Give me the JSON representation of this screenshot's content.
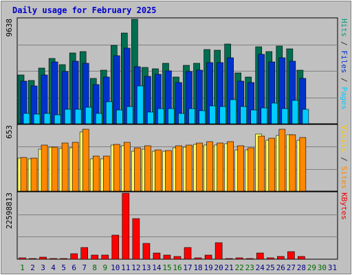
{
  "title": "Daily usage for February 2025",
  "chart_data": [
    {
      "type": "bar",
      "panel": "pages-files-hits",
      "y_max_label": "9638",
      "ylim": [
        0,
        9638
      ],
      "right_label_parts": [
        {
          "text": "Pages",
          "color": "#00ccff"
        },
        {
          "text": " / ",
          "color": "#333333"
        },
        {
          "text": "Files",
          "color": "#0033cc"
        },
        {
          "text": " / ",
          "color": "#333333"
        },
        {
          "text": "Hits",
          "color": "#00a07a"
        }
      ],
      "categories": [
        "1",
        "2",
        "3",
        "4",
        "5",
        "6",
        "7",
        "8",
        "9",
        "10",
        "11",
        "12",
        "13",
        "14",
        "15",
        "16",
        "17",
        "18",
        "19",
        "20",
        "21",
        "22",
        "23",
        "24",
        "25",
        "26",
        "27",
        "28",
        "29",
        "30",
        "31"
      ],
      "series": [
        {
          "name": "Hits",
          "color": "#006e50",
          "values": [
            4520,
            3980,
            5150,
            6010,
            5440,
            6510,
            6640,
            4170,
            4940,
            7240,
            8370,
            9638,
            5180,
            5090,
            5600,
            4300,
            5400,
            5600,
            6830,
            6780,
            7380,
            4720,
            4330,
            7080,
            6670,
            7190,
            6920,
            4920,
            null,
            null,
            null
          ]
        },
        {
          "name": "Files",
          "color": "#0033cc",
          "values": [
            3910,
            3470,
            4510,
            5680,
            4830,
            5790,
            5570,
            3610,
            4300,
            6280,
            6980,
            5270,
            4360,
            4540,
            4910,
            3780,
            4810,
            4960,
            5670,
            5650,
            6070,
            3920,
            3830,
            6380,
            5720,
            6080,
            5770,
            4200,
            null,
            null,
            null
          ]
        },
        {
          "name": "Pages",
          "color": "#00ccff",
          "values": [
            920,
            860,
            950,
            800,
            1300,
            1320,
            1510,
            940,
            2060,
            1250,
            1560,
            3490,
            1050,
            1410,
            1390,
            930,
            1420,
            1220,
            1630,
            1590,
            2250,
            1570,
            1240,
            1490,
            1900,
            1410,
            2170,
            1340,
            null,
            null,
            null
          ]
        }
      ],
      "x_label_colors": [
        "#006600",
        "#000080",
        "#000080",
        "#000080",
        "#000080",
        "#000080",
        "#000080",
        "#006600",
        "#006600",
        "#000080",
        "#000080",
        "#000080",
        "#000080",
        "#000080",
        "#006600",
        "#006600",
        "#000080",
        "#000080",
        "#000080",
        "#000080",
        "#000080",
        "#006600",
        "#006600",
        "#000080",
        "#000080",
        "#000080",
        "#000080",
        "#000080",
        "#006600",
        "#006600",
        "#000080"
      ]
    },
    {
      "type": "bar",
      "panel": "visits-sites",
      "y_max_label": "653",
      "ylim": [
        0,
        653
      ],
      "right_label_parts": [
        {
          "text": "Sites",
          "color": "#ff8800"
        },
        {
          "text": " / ",
          "color": "#333333"
        },
        {
          "text": "Visits",
          "color": "#ffcc00"
        }
      ],
      "series": [
        {
          "name": "Visits",
          "color": "#ffff66",
          "values": [
            328,
            322,
            418,
            440,
            428,
            436,
            588,
            323,
            320,
            460,
            455,
            396,
            420,
            402,
            401,
            432,
            440,
            465,
            458,
            461,
            472,
            409,
            410,
            568,
            508,
            560,
            566,
            510,
            null,
            null,
            null
          ]
        },
        {
          "name": "Sites",
          "color": "#ff8800",
          "values": [
            337,
            333,
            463,
            440,
            480,
            485,
            618,
            352,
            350,
            468,
            488,
            436,
            451,
            412,
            408,
            451,
            460,
            481,
            492,
            478,
            495,
            452,
            433,
            553,
            532,
            617,
            563,
            537,
            null,
            null,
            null
          ]
        }
      ]
    },
    {
      "type": "bar",
      "panel": "kbytes",
      "y_max_label": "22598813",
      "ylim": [
        0,
        22598813
      ],
      "right_label_parts": [
        {
          "text": "KBytes",
          "color": "#ee0000"
        }
      ],
      "series": [
        {
          "name": "KBytes",
          "color": "#ff0000",
          "values": [
            420000,
            160000,
            690000,
            140000,
            110000,
            1890000,
            3900000,
            1450000,
            1370000,
            8260000,
            22598813,
            13930000,
            5350000,
            2160000,
            1450000,
            850000,
            3950000,
            440000,
            1420000,
            5730000,
            320000,
            440000,
            310000,
            2030000,
            580000,
            930000,
            2620000,
            870000,
            null,
            null,
            null
          ]
        }
      ]
    }
  ]
}
